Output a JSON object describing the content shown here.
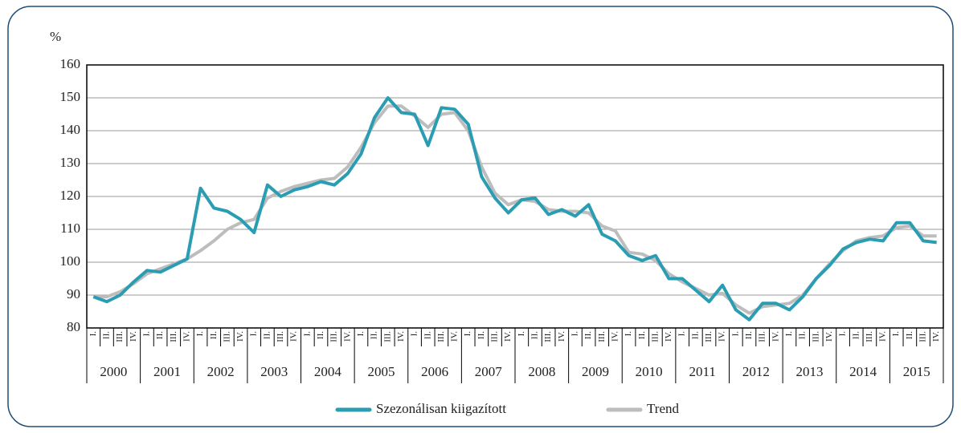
{
  "chart_data": {
    "type": "line",
    "y_label": "%",
    "categories": [
      "I.",
      "II.",
      "III.",
      "IV.",
      "I.",
      "II.",
      "III.",
      "IV.",
      "I.",
      "II.",
      "III.",
      "IV.",
      "I.",
      "II.",
      "III.",
      "IV.",
      "I.",
      "II.",
      "III.",
      "IV.",
      "I.",
      "II.",
      "III.",
      "IV.",
      "I.",
      "II.",
      "III.",
      "IV.",
      "I.",
      "II.",
      "III.",
      "IV.",
      "I.",
      "II.",
      "III.",
      "IV.",
      "I.",
      "II.",
      "III.",
      "IV.",
      "I.",
      "II.",
      "III.",
      "IV.",
      "I.",
      "II.",
      "III.",
      "IV.",
      "I.",
      "II.",
      "III.",
      "IV.",
      "I.",
      "II.",
      "III.",
      "IV.",
      "I.",
      "II.",
      "III.",
      "IV.",
      "I.",
      "II.",
      "III.",
      "IV."
    ],
    "years": [
      "2000",
      "2001",
      "2002",
      "2003",
      "2004",
      "2005",
      "2006",
      "2007",
      "2008",
      "2009",
      "2010",
      "2011",
      "2012",
      "2013",
      "2014",
      "2015"
    ],
    "series": [
      {
        "name": "Szezonálisan kiigazított",
        "color": "#2a9db3",
        "values": [
          89.5,
          88,
          90,
          94,
          97.5,
          97,
          99,
          101,
          122.5,
          116.5,
          115.5,
          113,
          109,
          123.5,
          120,
          122,
          123,
          124.5,
          123.5,
          127,
          133,
          144,
          150,
          145.5,
          145,
          135.5,
          147,
          146.5,
          142,
          126,
          119.5,
          115,
          119,
          119.5,
          114.5,
          116,
          114,
          117.5,
          108.5,
          106.5,
          102,
          100.5,
          102,
          95,
          95,
          91.5,
          88,
          93,
          85.5,
          82.5,
          87.5,
          87.5,
          85.5,
          89.5,
          95,
          99,
          104,
          106,
          107,
          106.5,
          112,
          112,
          106.5,
          106
        ]
      },
      {
        "name": "Trend",
        "color": "#bdbdbd",
        "values": [
          89.5,
          89.5,
          91,
          93.5,
          96.5,
          98,
          99.5,
          101,
          103.5,
          106.5,
          110,
          112,
          113,
          119.5,
          121.5,
          123,
          124,
          125,
          125.5,
          129,
          135,
          142.5,
          147.5,
          147.5,
          144.5,
          141,
          145,
          145.5,
          140,
          129,
          121,
          117.5,
          119,
          118.5,
          116,
          115.5,
          115.5,
          115,
          111,
          109.5,
          103,
          102.5,
          100.5,
          96.5,
          94,
          92,
          90,
          90.5,
          87,
          84.5,
          86.5,
          87,
          87.5,
          90,
          95,
          99.5,
          103.5,
          106.5,
          107.5,
          108,
          110.5,
          111,
          108,
          108
        ]
      }
    ],
    "ylim": [
      80,
      160
    ],
    "yticks": [
      80,
      90,
      100,
      110,
      120,
      130,
      140,
      150,
      160
    ],
    "grid": true,
    "legend": "bottom"
  }
}
